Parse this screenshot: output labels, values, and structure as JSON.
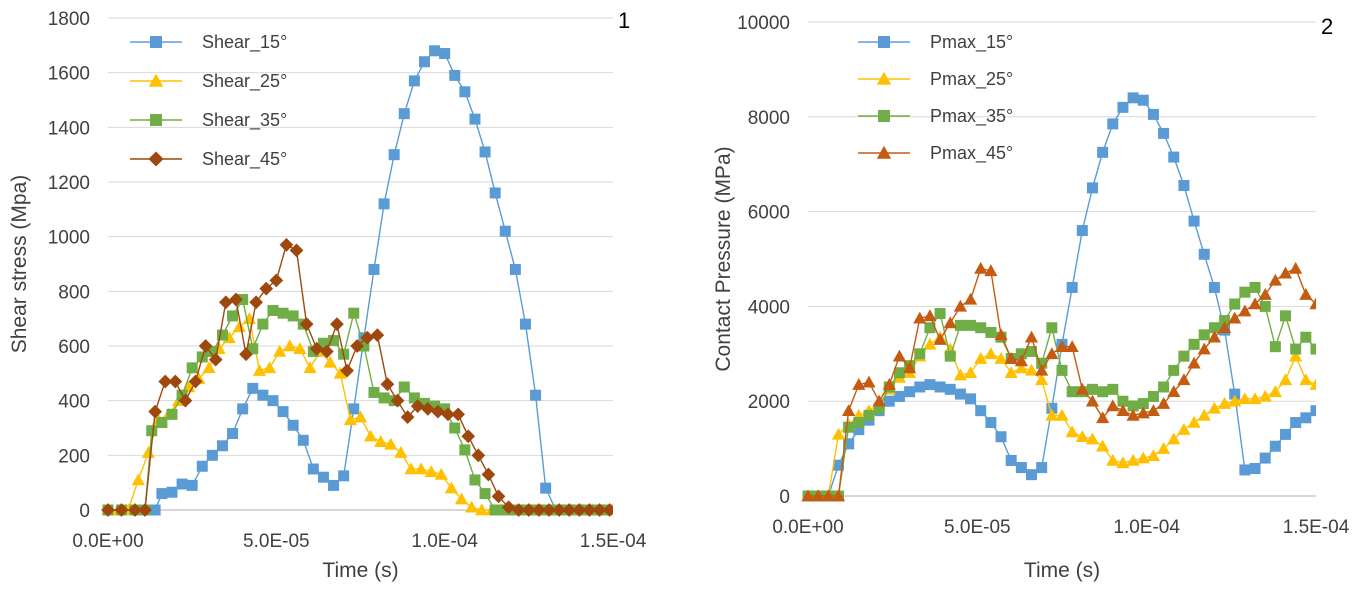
{
  "chart_data": [
    {
      "type": "line",
      "panel_label": "1",
      "xlabel": "Time (s)",
      "ylabel": "Shear stress (Mpa)",
      "xlim": [
        0,
        0.00015
      ],
      "ylim": [
        0,
        1800
      ],
      "x_ticks": [
        "0.0E+00",
        "5.0E-05",
        "1.0E-04",
        "1.5E-04"
      ],
      "x_tick_values": [
        0,
        5e-05,
        0.0001,
        0.00015
      ],
      "y_ticks": [
        "0",
        "200",
        "400",
        "600",
        "800",
        "1000",
        "1200",
        "1400",
        "1600",
        "1800"
      ],
      "y_tick_values": [
        0,
        200,
        400,
        600,
        800,
        1000,
        1200,
        1400,
        1600,
        1800
      ],
      "grid": "horizontal",
      "legend_position": "top-left",
      "series": [
        {
          "name": "Shear_15°",
          "color": "#5b9bd5",
          "marker": "square",
          "x": [
            0,
            4e-06,
            8e-06,
            1.2e-05,
            1.4e-05,
            1.6e-05,
            1.9e-05,
            2.2e-05,
            2.5e-05,
            2.8e-05,
            3.1e-05,
            3.4e-05,
            3.7e-05,
            4e-05,
            4.3e-05,
            4.6e-05,
            4.9e-05,
            5.2e-05,
            5.5e-05,
            5.8e-05,
            6.1e-05,
            6.4e-05,
            6.7e-05,
            7e-05,
            7.3e-05,
            7.6e-05,
            7.9e-05,
            8.2e-05,
            8.5e-05,
            8.8e-05,
            9.1e-05,
            9.4e-05,
            9.7e-05,
            0.0001,
            0.000103,
            0.000106,
            0.000109,
            0.000112,
            0.000115,
            0.000118,
            0.000121,
            0.000124,
            0.000127,
            0.00013,
            0.000133,
            0.000136,
            0.000139,
            0.000142,
            0.000145,
            0.000148
          ],
          "y": [
            0,
            0,
            0,
            0,
            0,
            60,
            65,
            95,
            90,
            160,
            200,
            235,
            280,
            370,
            445,
            420,
            400,
            360,
            310,
            255,
            150,
            120,
            90,
            125,
            370,
            630,
            880,
            1120,
            1300,
            1450,
            1570,
            1640,
            1680,
            1670,
            1590,
            1530,
            1430,
            1310,
            1160,
            1020,
            880,
            680,
            420,
            80,
            0,
            0,
            0,
            0,
            0,
            0
          ]
        },
        {
          "name": "Shear_25°",
          "color": "#ffc000",
          "marker": "triangle",
          "x": [
            0,
            3e-06,
            6e-06,
            9e-06,
            1.2e-05,
            1.5e-05,
            1.8e-05,
            2.1e-05,
            2.4e-05,
            2.7e-05,
            3e-05,
            3.3e-05,
            3.6e-05,
            3.9e-05,
            4.2e-05,
            4.5e-05,
            4.8e-05,
            5.1e-05,
            5.4e-05,
            5.7e-05,
            6e-05,
            6.3e-05,
            6.6e-05,
            6.9e-05,
            7.2e-05,
            7.5e-05,
            7.8e-05,
            8.1e-05,
            8.4e-05,
            8.7e-05,
            9e-05,
            9.3e-05,
            9.6e-05,
            9.9e-05,
            0.000102,
            0.000105,
            0.000108,
            0.000111,
            0.000114,
            0.000117,
            0.00012,
            0.000123,
            0.000126,
            0.000129,
            0.000132,
            0.000135,
            0.000138,
            0.000141,
            0.000144,
            0.000147,
            0.00015
          ],
          "y": [
            0,
            0,
            0,
            110,
            210,
            330,
            350,
            400,
            450,
            480,
            520,
            590,
            630,
            670,
            700,
            510,
            520,
            580,
            600,
            590,
            520,
            580,
            540,
            500,
            330,
            340,
            270,
            250,
            240,
            210,
            150,
            150,
            140,
            130,
            80,
            40,
            10,
            0,
            0,
            0,
            0,
            0,
            0,
            0,
            0,
            0,
            0,
            0,
            0,
            0,
            0
          ]
        },
        {
          "name": "Shear_35°",
          "color": "#70ad47",
          "marker": "square",
          "x": [
            0,
            4e-06,
            8e-06,
            1.1e-05,
            1.3e-05,
            1.6e-05,
            1.9e-05,
            2.2e-05,
            2.5e-05,
            2.8e-05,
            3.1e-05,
            3.4e-05,
            3.7e-05,
            4e-05,
            4.3e-05,
            4.6e-05,
            4.9e-05,
            5.2e-05,
            5.5e-05,
            5.8e-05,
            6.1e-05,
            6.4e-05,
            6.7e-05,
            7e-05,
            7.3e-05,
            7.6e-05,
            7.9e-05,
            8.2e-05,
            8.5e-05,
            8.8e-05,
            9.1e-05,
            9.4e-05,
            9.7e-05,
            0.0001,
            0.000103,
            0.000106,
            0.000109,
            0.000112,
            0.000115,
            0.000118,
            0.000121,
            0.000124,
            0.000127,
            0.00013,
            0.000133,
            0.000136,
            0.000139,
            0.000142,
            0.000145,
            0.000148
          ],
          "y": [
            0,
            0,
            0,
            0,
            290,
            320,
            350,
            420,
            520,
            560,
            580,
            640,
            710,
            770,
            590,
            680,
            730,
            720,
            710,
            680,
            580,
            610,
            620,
            570,
            720,
            600,
            430,
            410,
            400,
            450,
            410,
            390,
            380,
            370,
            300,
            220,
            110,
            60,
            0,
            0,
            0,
            0,
            0,
            0,
            0,
            0,
            0,
            0,
            0,
            0
          ]
        },
        {
          "name": "Shear_45°",
          "color": "#9e480e",
          "marker": "diamond",
          "x": [
            0,
            4e-06,
            8e-06,
            1.1e-05,
            1.4e-05,
            1.7e-05,
            2e-05,
            2.3e-05,
            2.6e-05,
            2.9e-05,
            3.2e-05,
            3.5e-05,
            3.8e-05,
            4.1e-05,
            4.4e-05,
            4.7e-05,
            5e-05,
            5.3e-05,
            5.6e-05,
            5.9e-05,
            6.2e-05,
            6.5e-05,
            6.8e-05,
            7.1e-05,
            7.4e-05,
            7.7e-05,
            8e-05,
            8.3e-05,
            8.6e-05,
            8.9e-05,
            9.2e-05,
            9.5e-05,
            9.8e-05,
            0.000101,
            0.000104,
            0.000107,
            0.00011,
            0.000113,
            0.000116,
            0.000119,
            0.000122,
            0.000125,
            0.000128,
            0.000131,
            0.000134,
            0.000137,
            0.00014,
            0.000143,
            0.000146,
            0.000149
          ],
          "y": [
            0,
            0,
            0,
            0,
            360,
            470,
            470,
            400,
            470,
            600,
            550,
            760,
            770,
            570,
            760,
            810,
            840,
            970,
            950,
            680,
            590,
            580,
            680,
            510,
            600,
            630,
            640,
            460,
            400,
            340,
            380,
            370,
            360,
            350,
            350,
            270,
            200,
            130,
            50,
            10,
            0,
            0,
            0,
            0,
            0,
            0,
            0,
            0,
            0,
            0
          ]
        }
      ]
    },
    {
      "type": "line",
      "panel_label": "2",
      "xlabel": "Time (s)",
      "ylabel": "Contact Pressure (MPa)",
      "xlim": [
        0,
        0.00015
      ],
      "ylim": [
        0,
        10000
      ],
      "x_ticks": [
        "0.0E+00",
        "5.0E-05",
        "1.0E-04",
        "1.5E-04"
      ],
      "x_tick_values": [
        0,
        5e-05,
        0.0001,
        0.00015
      ],
      "y_ticks": [
        "0",
        "2000",
        "4000",
        "6000",
        "8000",
        "10000"
      ],
      "y_tick_values": [
        0,
        2000,
        4000,
        6000,
        8000,
        10000
      ],
      "grid": "horizontal",
      "legend_position": "top-left",
      "series": [
        {
          "name": "Pmax_15°",
          "color": "#5b9bd5",
          "marker": "square",
          "x": [
            0,
            3e-06,
            6e-06,
            9e-06,
            1.2e-05,
            1.5e-05,
            1.8e-05,
            2.1e-05,
            2.4e-05,
            2.7e-05,
            3e-05,
            3.3e-05,
            3.6e-05,
            3.9e-05,
            4.2e-05,
            4.5e-05,
            4.8e-05,
            5.1e-05,
            5.4e-05,
            5.7e-05,
            6e-05,
            6.3e-05,
            6.6e-05,
            6.9e-05,
            7.2e-05,
            7.5e-05,
            7.8e-05,
            8.1e-05,
            8.4e-05,
            8.7e-05,
            9e-05,
            9.3e-05,
            9.6e-05,
            9.9e-05,
            0.000102,
            0.000105,
            0.000108,
            0.000111,
            0.000114,
            0.000117,
            0.00012,
            0.000123,
            0.000126,
            0.000129,
            0.000132,
            0.000135,
            0.000138,
            0.000141,
            0.000144,
            0.000147,
            0.00015
          ],
          "y": [
            0,
            0,
            0,
            650,
            1100,
            1400,
            1600,
            1800,
            2000,
            2100,
            2200,
            2300,
            2350,
            2300,
            2250,
            2150,
            2050,
            1800,
            1550,
            1250,
            750,
            600,
            450,
            600,
            1850,
            3200,
            4400,
            5600,
            6500,
            7250,
            7850,
            8200,
            8400,
            8350,
            8050,
            7650,
            7150,
            6550,
            5800,
            5100,
            4400,
            3500,
            2150,
            550,
            580,
            800,
            1050,
            1300,
            1550,
            1650,
            1800
          ]
        },
        {
          "name": "Pmax_25°",
          "color": "#ffc000",
          "marker": "triangle",
          "x": [
            0,
            3e-06,
            6e-06,
            9e-06,
            1.2e-05,
            1.5e-05,
            1.8e-05,
            2.1e-05,
            2.4e-05,
            2.7e-05,
            3e-05,
            3.3e-05,
            3.6e-05,
            3.9e-05,
            4.2e-05,
            4.5e-05,
            4.8e-05,
            5.1e-05,
            5.4e-05,
            5.7e-05,
            6e-05,
            6.3e-05,
            6.6e-05,
            6.9e-05,
            7.2e-05,
            7.5e-05,
            7.8e-05,
            8.1e-05,
            8.4e-05,
            8.7e-05,
            9e-05,
            9.3e-05,
            9.6e-05,
            9.9e-05,
            0.000102,
            0.000105,
            0.000108,
            0.000111,
            0.000114,
            0.000117,
            0.00012,
            0.000123,
            0.000126,
            0.000129,
            0.000132,
            0.000135,
            0.000138,
            0.000141,
            0.000144,
            0.000147,
            0.00015
          ],
          "y": [
            0,
            0,
            0,
            1300,
            1500,
            1700,
            1800,
            1950,
            2250,
            2500,
            2600,
            2950,
            3200,
            3350,
            3100,
            2550,
            2600,
            2900,
            3000,
            2900,
            2600,
            2700,
            2650,
            2450,
            1700,
            1700,
            1350,
            1250,
            1200,
            1050,
            750,
            700,
            750,
            800,
            850,
            1000,
            1200,
            1400,
            1550,
            1700,
            1850,
            1950,
            2000,
            2050,
            2050,
            2100,
            2200,
            2450,
            2950,
            2450,
            2350
          ]
        },
        {
          "name": "Pmax_35°",
          "color": "#70ad47",
          "marker": "square",
          "x": [
            0,
            3e-06,
            6e-06,
            9e-06,
            1.2e-05,
            1.5e-05,
            1.8e-05,
            2.1e-05,
            2.4e-05,
            2.7e-05,
            3e-05,
            3.3e-05,
            3.6e-05,
            3.9e-05,
            4.2e-05,
            4.5e-05,
            4.8e-05,
            5.1e-05,
            5.4e-05,
            5.7e-05,
            6e-05,
            6.3e-05,
            6.6e-05,
            6.9e-05,
            7.2e-05,
            7.5e-05,
            7.8e-05,
            8.1e-05,
            8.4e-05,
            8.7e-05,
            9e-05,
            9.3e-05,
            9.6e-05,
            9.9e-05,
            0.000102,
            0.000105,
            0.000108,
            0.000111,
            0.000114,
            0.000117,
            0.00012,
            0.000123,
            0.000126,
            0.000129,
            0.000132,
            0.000135,
            0.000138,
            0.000141,
            0.000144,
            0.000147,
            0.00015
          ],
          "y": [
            0,
            0,
            0,
            0,
            1450,
            1550,
            1700,
            1850,
            2300,
            2600,
            2750,
            3000,
            3550,
            3850,
            2950,
            3600,
            3600,
            3550,
            3450,
            3350,
            2900,
            3000,
            3050,
            2800,
            3550,
            2650,
            2200,
            2200,
            2250,
            2200,
            2250,
            2000,
            1900,
            1950,
            2100,
            2300,
            2650,
            2950,
            3200,
            3400,
            3550,
            3700,
            4050,
            4300,
            4400,
            4000,
            3150,
            3800,
            3100,
            3350,
            3100
          ]
        },
        {
          "name": "Pmax_45°",
          "color": "#c55a11",
          "marker": "triangle",
          "x": [
            0,
            3e-06,
            6e-06,
            9e-06,
            1.2e-05,
            1.5e-05,
            1.8e-05,
            2.1e-05,
            2.4e-05,
            2.7e-05,
            3e-05,
            3.3e-05,
            3.6e-05,
            3.9e-05,
            4.2e-05,
            4.5e-05,
            4.8e-05,
            5.1e-05,
            5.4e-05,
            5.7e-05,
            6e-05,
            6.3e-05,
            6.6e-05,
            6.9e-05,
            7.2e-05,
            7.5e-05,
            7.8e-05,
            8.1e-05,
            8.4e-05,
            8.7e-05,
            9e-05,
            9.3e-05,
            9.6e-05,
            9.9e-05,
            0.000102,
            0.000105,
            0.000108,
            0.000111,
            0.000114,
            0.000117,
            0.00012,
            0.000123,
            0.000126,
            0.000129,
            0.000132,
            0.000135,
            0.000138,
            0.000141,
            0.000144,
            0.000147,
            0.00015
          ],
          "y": [
            0,
            0,
            0,
            0,
            1800,
            2350,
            2400,
            2000,
            2350,
            2950,
            2700,
            3750,
            3800,
            3300,
            3650,
            4000,
            4150,
            4800,
            4750,
            3400,
            2900,
            2850,
            3350,
            2650,
            3000,
            3150,
            3150,
            2250,
            2000,
            1650,
            1900,
            1800,
            1700,
            1750,
            1800,
            1950,
            2200,
            2450,
            2800,
            3100,
            3350,
            3550,
            3750,
            3900,
            4050,
            4250,
            4550,
            4700,
            4800,
            4250,
            4050
          ]
        }
      ]
    }
  ]
}
